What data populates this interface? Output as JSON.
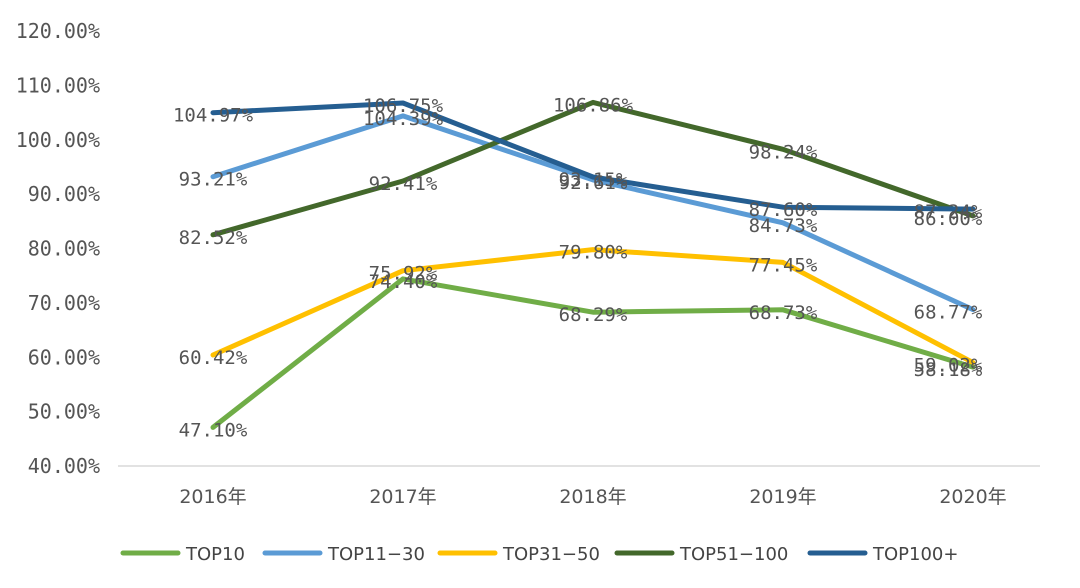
{
  "chart_data": {
    "type": "line",
    "categories": [
      "2016年",
      "2017年",
      "2018年",
      "2019年",
      "2020年"
    ],
    "ylim": [
      40,
      120
    ],
    "yticks": [
      40,
      50,
      60,
      70,
      80,
      90,
      100,
      110,
      120
    ],
    "ytick_labels": [
      "40.00%",
      "50.00%",
      "60.00%",
      "70.00%",
      "80.00%",
      "90.00%",
      "100.00%",
      "110.00%",
      "120.00%"
    ],
    "grid": false,
    "legend": "bottom",
    "series": [
      {
        "name": "TOP10",
        "color": "#70AD47",
        "values": [
          47.1,
          74.4,
          68.29,
          68.73,
          58.18
        ],
        "labels": [
          "47.10%",
          "74.40%",
          "68.29%",
          "68.73%",
          "58.18%"
        ]
      },
      {
        "name": "TOP11−30",
        "color": "#5B9BD5",
        "values": [
          93.21,
          104.39,
          92.61,
          84.73,
          68.77
        ],
        "labels": [
          "93.21%",
          "104.39%",
          "92.61%",
          "84.73%",
          "68.77%"
        ]
      },
      {
        "name": "TOP31−50",
        "color": "#FFC000",
        "values": [
          60.42,
          75.92,
          79.8,
          77.45,
          59.02
        ],
        "labels": [
          "60.42%",
          "75.92%",
          "79.80%",
          "77.45%",
          "59.02%"
        ]
      },
      {
        "name": "TOP51−100",
        "color": "#43682B",
        "values": [
          82.52,
          92.41,
          106.86,
          98.24,
          86.0
        ],
        "labels": [
          "82.52%",
          "92.41%",
          "106.86%",
          "98.24%",
          "86.00%"
        ]
      },
      {
        "name": "TOP100+",
        "color": "#255E91",
        "values": [
          104.97,
          106.75,
          93.15,
          87.6,
          87.24
        ],
        "labels": [
          "104.97%",
          "106.75%",
          "93.15%",
          "87.60%",
          "87.24%"
        ]
      }
    ]
  }
}
